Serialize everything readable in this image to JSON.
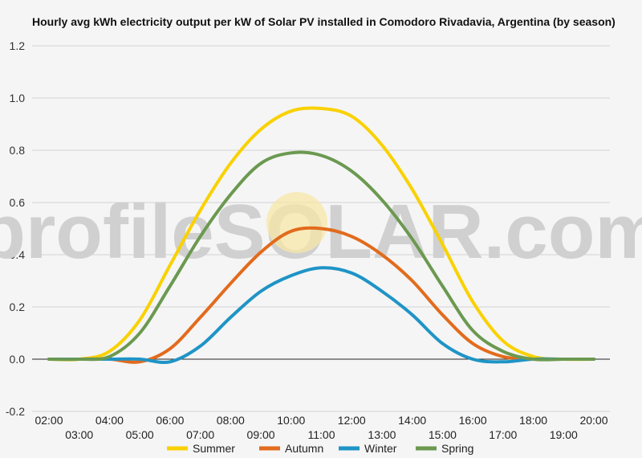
{
  "chart_data": {
    "type": "line",
    "title": "Hourly avg kWh electricity output per kW of Solar PV installed in Comodoro Rivadavia, Argentina (by season)",
    "watermark": "profileSOLAR.com",
    "xlabel": "",
    "ylabel": "",
    "ylim": [
      -0.2,
      1.2
    ],
    "yticks": [
      "1.2",
      "1.0",
      "0.8",
      "0.6",
      "0.4",
      "0.2",
      "0.0",
      "-0.2"
    ],
    "x": [
      "02:00",
      "03:00",
      "04:00",
      "05:00",
      "06:00",
      "07:00",
      "08:00",
      "09:00",
      "10:00",
      "11:00",
      "12:00",
      "13:00",
      "14:00",
      "15:00",
      "16:00",
      "17:00",
      "18:00",
      "19:00",
      "20:00"
    ],
    "grid": true,
    "legend_position": "bottom",
    "series": [
      {
        "name": "Summer",
        "color": "#f9d100",
        "values": [
          0.0,
          0.0,
          0.03,
          0.15,
          0.36,
          0.57,
          0.75,
          0.88,
          0.95,
          0.96,
          0.93,
          0.82,
          0.65,
          0.44,
          0.22,
          0.07,
          0.01,
          0.0,
          0.0
        ]
      },
      {
        "name": "Autumn",
        "color": "#e26b1d",
        "values": [
          0.0,
          0.0,
          0.0,
          -0.01,
          0.04,
          0.16,
          0.29,
          0.41,
          0.49,
          0.5,
          0.47,
          0.4,
          0.3,
          0.17,
          0.06,
          0.01,
          0.0,
          0.0,
          0.0
        ]
      },
      {
        "name": "Winter",
        "color": "#1f94c6",
        "values": [
          0.0,
          0.0,
          0.0,
          0.0,
          -0.01,
          0.05,
          0.16,
          0.26,
          0.32,
          0.35,
          0.33,
          0.26,
          0.17,
          0.06,
          0.0,
          -0.01,
          0.0,
          0.0,
          0.0
        ]
      },
      {
        "name": "Spring",
        "color": "#6b9950",
        "values": [
          0.0,
          0.0,
          0.01,
          0.1,
          0.28,
          0.47,
          0.63,
          0.75,
          0.79,
          0.78,
          0.72,
          0.61,
          0.46,
          0.28,
          0.11,
          0.03,
          0.0,
          0.0,
          0.0
        ]
      }
    ]
  }
}
